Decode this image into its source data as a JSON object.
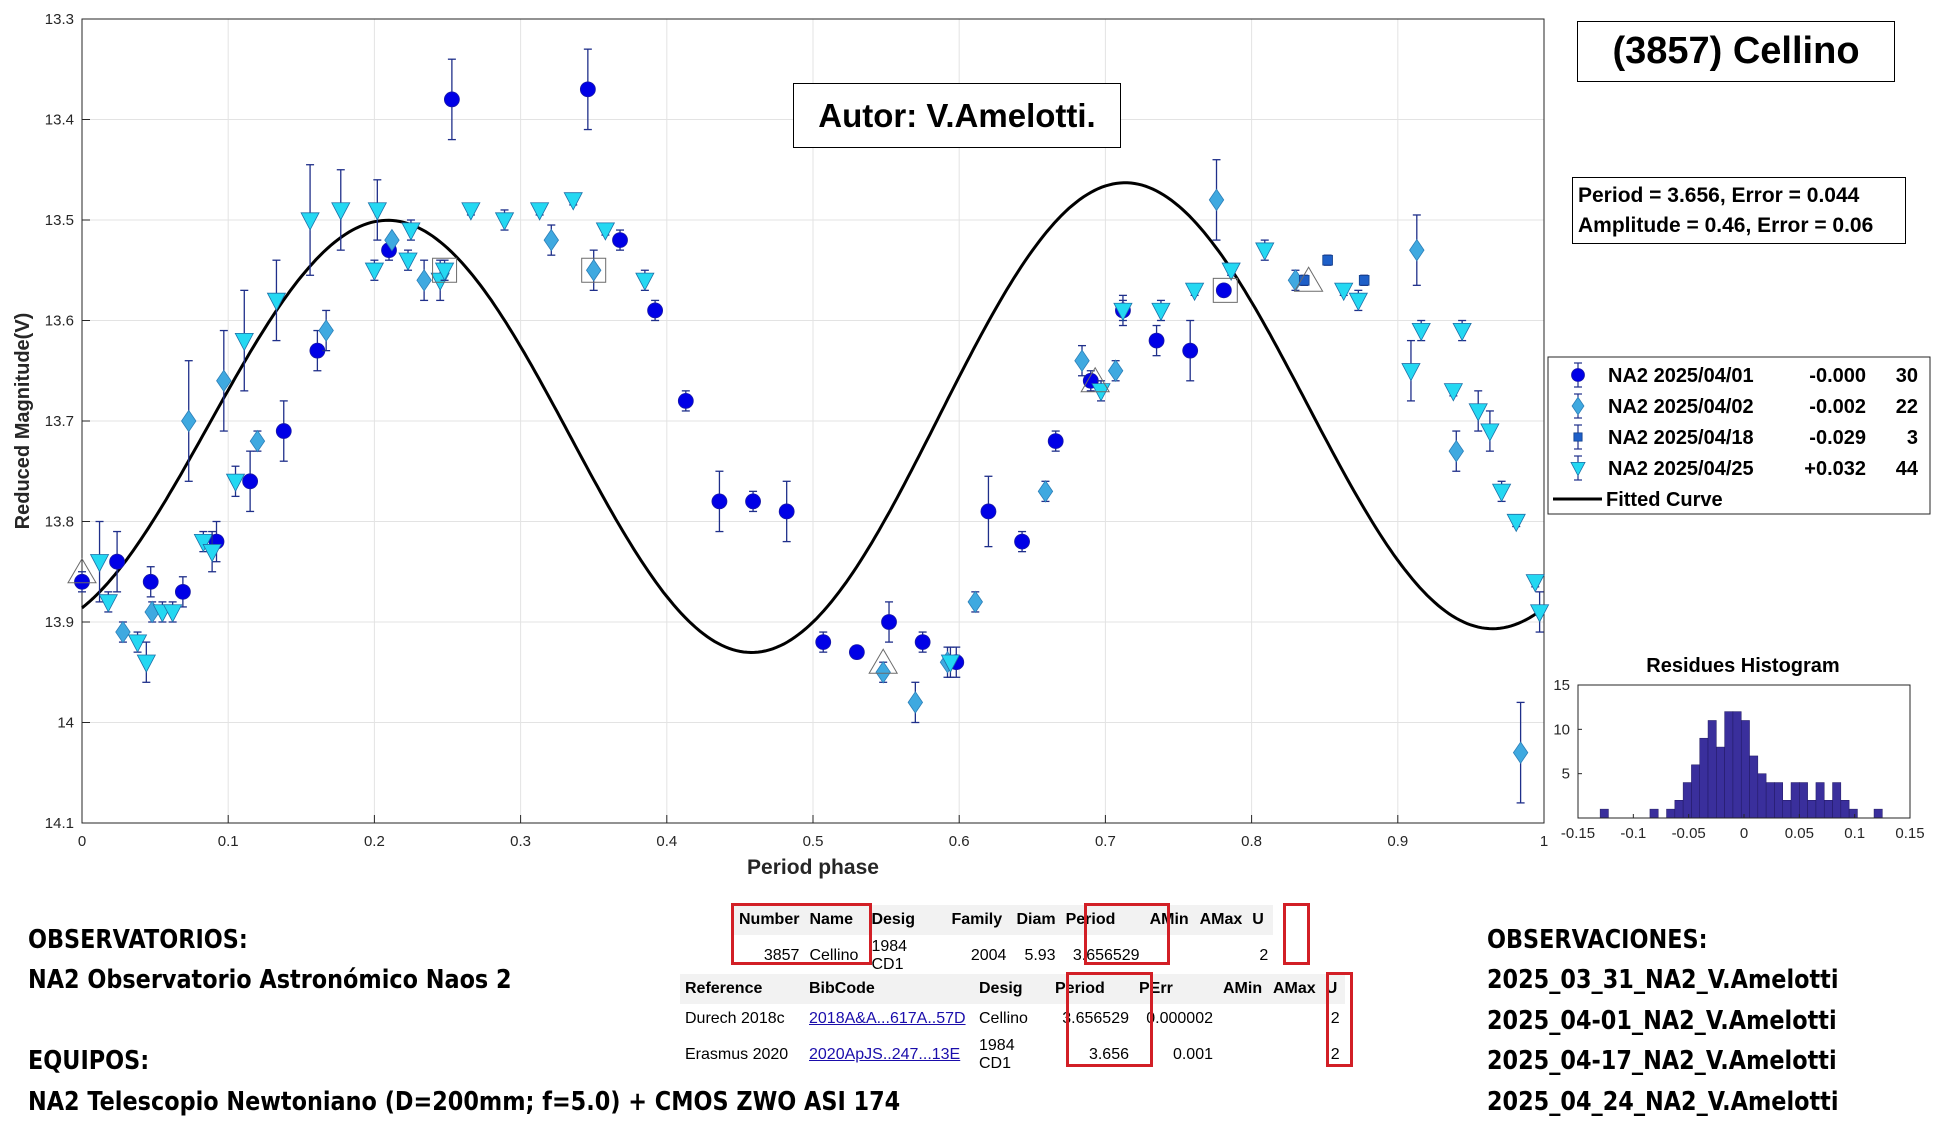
{
  "title_box": "(3857) Cellino",
  "author_box": "Autor: V.Amelotti.",
  "fit_info": {
    "line1": "Period =  3.656, Error = 0.044",
    "line2": "Amplitude = 0.46, Error = 0.06"
  },
  "chart_data": [
    {
      "type": "scatter",
      "title": "",
      "xlabel": "Period phase",
      "ylabel": "Reduced Magnitude(V)",
      "xlim": [
        0,
        1
      ],
      "ylim": [
        13.3,
        14.1
      ],
      "y_reversed": true,
      "xticks": [
        0,
        0.1,
        0.2,
        0.3,
        0.4,
        0.5,
        0.6,
        0.7,
        0.8,
        0.9,
        1
      ],
      "xtick_labels": [
        "0",
        "0.1",
        "0.2",
        "0.3",
        "0.4",
        "0.5",
        "0.6",
        "0.7",
        "0.8",
        "0.9",
        "1"
      ],
      "yticks": [
        13.3,
        13.4,
        13.5,
        13.6,
        13.7,
        13.8,
        13.9,
        14,
        14.1
      ],
      "ytick_labels": [
        "13.3",
        "13.4",
        "13.5",
        "13.6",
        "13.7",
        "13.8",
        "13.9",
        "14",
        "14.1"
      ],
      "grid": true,
      "legend_position": "right",
      "legend": [
        {
          "name": "NA2 2025/04/01",
          "offset": "-0.000",
          "count": "30",
          "marker": "circle",
          "color": "#0000e6"
        },
        {
          "name": "NA2 2025/04/02",
          "offset": "-0.002",
          "count": "22",
          "marker": "diamond",
          "color": "#3fa9e0"
        },
        {
          "name": "NA2 2025/04/18",
          "offset": "-0.029",
          "count": "3",
          "marker": "square",
          "color": "#1e5fc8"
        },
        {
          "name": "NA2 2025/04/25",
          "offset": "+0.032",
          "count": "44",
          "marker": "triangle-down",
          "color": "#24d8f2"
        },
        {
          "name": "Fitted Curve",
          "offset": "",
          "count": "",
          "marker": "line",
          "color": "#000000"
        }
      ],
      "fit_curve": {
        "mean": 13.7,
        "a1": -0.007,
        "b1": 0.021,
        "a2": 0.193,
        "b2": -0.102
      },
      "series": [
        {
          "name": "NA2 2025/04/01",
          "points": [
            [
              0.0,
              13.86,
              0.01
            ],
            [
              0.024,
              13.84,
              0.03
            ],
            [
              0.047,
              13.86,
              0.015
            ],
            [
              0.069,
              13.87,
              0.015
            ],
            [
              0.092,
              13.82,
              0.02
            ],
            [
              0.115,
              13.76,
              0.03
            ],
            [
              0.138,
              13.71,
              0.03
            ],
            [
              0.161,
              13.63,
              0.02
            ],
            [
              0.21,
              13.53,
              0.01
            ],
            [
              0.253,
              13.38,
              0.04
            ],
            [
              0.346,
              13.37,
              0.04
            ],
            [
              0.368,
              13.52,
              0.01
            ],
            [
              0.392,
              13.59,
              0.01
            ],
            [
              0.413,
              13.68,
              0.01
            ],
            [
              0.436,
              13.78,
              0.03
            ],
            [
              0.459,
              13.78,
              0.01
            ],
            [
              0.482,
              13.79,
              0.03
            ],
            [
              0.507,
              13.92,
              0.01
            ],
            [
              0.53,
              13.93,
              0.005
            ],
            [
              0.552,
              13.9,
              0.02
            ],
            [
              0.575,
              13.92,
              0.01
            ],
            [
              0.598,
              13.94,
              0.015
            ],
            [
              0.62,
              13.79,
              0.035
            ],
            [
              0.643,
              13.82,
              0.01
            ],
            [
              0.666,
              13.72,
              0.01
            ],
            [
              0.69,
              13.66,
              0.01
            ],
            [
              0.712,
              13.59,
              0.01
            ],
            [
              0.735,
              13.62,
              0.015
            ],
            [
              0.758,
              13.63,
              0.03
            ],
            [
              0.781,
              13.57,
              0.005
            ]
          ]
        },
        {
          "name": "NA2 2025/04/02",
          "points": [
            [
              0.028,
              13.91,
              0.01
            ],
            [
              0.048,
              13.89,
              0.01
            ],
            [
              0.073,
              13.7,
              0.06
            ],
            [
              0.097,
              13.66,
              0.05
            ],
            [
              0.12,
              13.72,
              0.01
            ],
            [
              0.167,
              13.61,
              0.02
            ],
            [
              0.212,
              13.52,
              0.005
            ],
            [
              0.234,
              13.56,
              0.02
            ],
            [
              0.321,
              13.52,
              0.015
            ],
            [
              0.35,
              13.55,
              0.02
            ],
            [
              0.548,
              13.95,
              0.01
            ],
            [
              0.57,
              13.98,
              0.02
            ],
            [
              0.592,
              13.94,
              0.015
            ],
            [
              0.611,
              13.88,
              0.01
            ],
            [
              0.659,
              13.77,
              0.01
            ],
            [
              0.684,
              13.64,
              0.015
            ],
            [
              0.707,
              13.65,
              0.01
            ],
            [
              0.776,
              13.48,
              0.04
            ],
            [
              0.83,
              13.56,
              0.01
            ],
            [
              0.913,
              13.53,
              0.035
            ],
            [
              0.94,
              13.73,
              0.02
            ],
            [
              0.984,
              14.03,
              0.05
            ]
          ]
        },
        {
          "name": "NA2 2025/04/18",
          "points": [
            [
              0.852,
              13.54,
              0.005
            ],
            [
              0.877,
              13.56,
              0.005
            ],
            [
              0.836,
              13.56,
              0.005
            ]
          ]
        },
        {
          "name": "NA2 2025/04/25",
          "points": [
            [
              0.012,
              13.84,
              0.04
            ],
            [
              0.018,
              13.88,
              0.01
            ],
            [
              0.038,
              13.92,
              0.01
            ],
            [
              0.044,
              13.94,
              0.02
            ],
            [
              0.055,
              13.89,
              0.01
            ],
            [
              0.062,
              13.89,
              0.01
            ],
            [
              0.083,
              13.82,
              0.01
            ],
            [
              0.089,
              13.83,
              0.02
            ],
            [
              0.105,
              13.76,
              0.015
            ],
            [
              0.111,
              13.62,
              0.05
            ],
            [
              0.133,
              13.58,
              0.04
            ],
            [
              0.156,
              13.5,
              0.055
            ],
            [
              0.177,
              13.49,
              0.04
            ],
            [
              0.2,
              13.55,
              0.01
            ],
            [
              0.202,
              13.49,
              0.03
            ],
            [
              0.223,
              13.54,
              0.01
            ],
            [
              0.225,
              13.51,
              0.01
            ],
            [
              0.245,
              13.56,
              0.02
            ],
            [
              0.248,
              13.55,
              0.01
            ],
            [
              0.266,
              13.49,
              0.005
            ],
            [
              0.289,
              13.5,
              0.01
            ],
            [
              0.313,
              13.49,
              0.005
            ],
            [
              0.336,
              13.48,
              0.005
            ],
            [
              0.358,
              13.51,
              0.005
            ],
            [
              0.385,
              13.56,
              0.01
            ],
            [
              0.594,
              13.94,
              0.015
            ],
            [
              0.697,
              13.67,
              0.01
            ],
            [
              0.712,
              13.59,
              0.015
            ],
            [
              0.738,
              13.59,
              0.01
            ],
            [
              0.761,
              13.57,
              0.005
            ],
            [
              0.786,
              13.55,
              0.005
            ],
            [
              0.809,
              13.53,
              0.01
            ],
            [
              0.863,
              13.57,
              0.005
            ],
            [
              0.873,
              13.58,
              0.01
            ],
            [
              0.909,
              13.65,
              0.03
            ],
            [
              0.916,
              13.61,
              0.01
            ],
            [
              0.938,
              13.67,
              0.005
            ],
            [
              0.944,
              13.61,
              0.01
            ],
            [
              0.955,
              13.69,
              0.02
            ],
            [
              0.963,
              13.71,
              0.02
            ],
            [
              0.971,
              13.77,
              0.01
            ],
            [
              0.981,
              13.8,
              0.005
            ],
            [
              0.994,
              13.86,
              0.005
            ],
            [
              0.997,
              13.89,
              0.02
            ]
          ]
        }
      ],
      "outlined_triangles": [
        [
          0.0,
          13.85
        ],
        [
          0.548,
          13.94
        ],
        [
          0.693,
          13.66
        ],
        [
          0.839,
          13.56
        ]
      ],
      "outlined_squares": [
        [
          0.248,
          13.55
        ],
        [
          0.35,
          13.55
        ],
        [
          0.782,
          13.57
        ]
      ]
    },
    {
      "type": "bar",
      "title": "Residues Histogram",
      "xlim": [
        -0.15,
        0.15
      ],
      "ylim": [
        0,
        15
      ],
      "xticks": [
        -0.15,
        -0.1,
        -0.05,
        0,
        0.05,
        0.1,
        0.15
      ],
      "xtick_labels": [
        "-0.15",
        "-0.1",
        "-0.05",
        "0",
        "0.05",
        "0.1",
        "0.15"
      ],
      "yticks": [
        5,
        10,
        15
      ],
      "ytick_labels": [
        "5",
        "10",
        "15"
      ],
      "bin_width": 0.0075,
      "bins": [
        -0.13,
        -0.1225,
        -0.115,
        -0.1075,
        -0.1,
        -0.0925,
        -0.085,
        -0.0775,
        -0.07,
        -0.0625,
        -0.055,
        -0.0475,
        -0.04,
        -0.0325,
        -0.025,
        -0.0175,
        -0.01,
        -0.0025,
        0.005,
        0.0125,
        0.02,
        0.0275,
        0.035,
        0.0425,
        0.05,
        0.0575,
        0.065,
        0.0725,
        0.08,
        0.0875,
        0.095,
        0.1025,
        0.11,
        0.1175,
        0.125
      ],
      "counts": [
        1,
        0,
        0,
        0,
        0,
        0,
        1,
        0,
        1,
        2,
        4,
        6,
        9,
        11,
        8,
        12,
        12,
        11,
        7,
        5,
        4,
        4,
        2,
        4,
        4,
        2,
        4,
        2,
        4,
        2,
        1,
        0,
        0,
        1,
        0
      ]
    }
  ],
  "observatorios": {
    "heading": "OBSERVATORIOS:",
    "line": "NA2 Observatorio Astronómico Naos 2"
  },
  "equipos": {
    "heading": "EQUIPOS:",
    "line": "NA2 Telescopio Newtoniano (D=200mm; f=5.0) + CMOS ZWO ASI 174"
  },
  "observaciones": {
    "heading": "OBSERVACIONES:",
    "items": [
      "2025_03_31_NA2_V.Amelotti",
      "2025_04-01_NA2_V.Amelotti",
      "2025_04-17_NA2_V.Amelotti",
      "2025_04_24_NA2_V.Amelotti"
    ]
  },
  "table1": {
    "headers": [
      "Number",
      "Name",
      "Desig",
      "Family",
      "Diam",
      "Period",
      "AMin",
      "AMax",
      "U"
    ],
    "row": [
      "3857",
      "Cellino",
      "1984 CD1",
      "2004",
      "5.93",
      "3.656529",
      "",
      "",
      "2"
    ]
  },
  "table2": {
    "headers": [
      "Reference",
      "BibCode",
      "Desig",
      "Period",
      "PErr",
      "AMin",
      "AMax",
      "U"
    ],
    "rows": [
      [
        "Durech 2018c",
        "2018A&A...617A..57D",
        "Cellino",
        "3.656529",
        "0.000002",
        "",
        "",
        "2"
      ],
      [
        "Erasmus 2020",
        "2020ApJS..247...13E",
        "1984 CD1",
        "3.656",
        "0.001",
        "",
        "",
        "2"
      ]
    ]
  }
}
